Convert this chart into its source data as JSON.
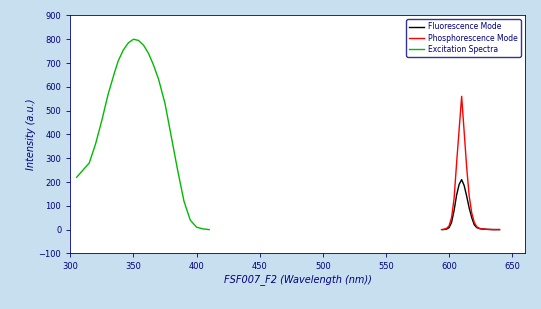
{
  "title": "",
  "xlabel": "FSF007_F2 (Wavelength (nm))",
  "ylabel": "Intensity (a.u.)",
  "xlim": [
    300,
    660
  ],
  "ylim": [
    -100,
    900
  ],
  "yticks": [
    -100,
    0,
    100,
    200,
    300,
    400,
    500,
    600,
    700,
    800,
    900
  ],
  "xticks": [
    300,
    350,
    400,
    450,
    500,
    550,
    600,
    650
  ],
  "background_color": "#c8dff0",
  "plot_bg_color": "#ffffff",
  "legend_labels": [
    "Fluorescence Mode",
    "Phosphorescence Mode",
    "Excitation Spectra"
  ],
  "legend_colors": [
    "#000000",
    "#ff0000",
    "#00bb00"
  ],
  "excitation_x": [
    305,
    315,
    320,
    325,
    330,
    335,
    338,
    342,
    346,
    350,
    354,
    358,
    362,
    366,
    370,
    375,
    380,
    385,
    390,
    395,
    400,
    405,
    410
  ],
  "excitation_y": [
    220,
    280,
    360,
    460,
    570,
    660,
    710,
    755,
    785,
    800,
    795,
    775,
    740,
    690,
    630,
    530,
    390,
    250,
    120,
    40,
    10,
    3,
    0
  ],
  "fluorescence_x": [
    595,
    598,
    600,
    602,
    604,
    606,
    608,
    610,
    612,
    614,
    616,
    618,
    620,
    622,
    625,
    630,
    635,
    640
  ],
  "fluorescence_y": [
    0,
    2,
    8,
    30,
    80,
    145,
    190,
    210,
    185,
    140,
    90,
    50,
    20,
    8,
    3,
    1,
    0,
    0
  ],
  "phosphorescence_x": [
    594,
    596,
    598,
    600,
    602,
    604,
    606,
    608,
    610,
    612,
    614,
    616,
    618,
    620,
    622,
    624,
    626,
    628,
    630,
    635,
    640
  ],
  "phosphorescence_y": [
    0,
    1,
    5,
    15,
    50,
    130,
    280,
    420,
    560,
    410,
    260,
    140,
    70,
    30,
    12,
    5,
    3,
    2,
    1,
    0,
    0
  ]
}
